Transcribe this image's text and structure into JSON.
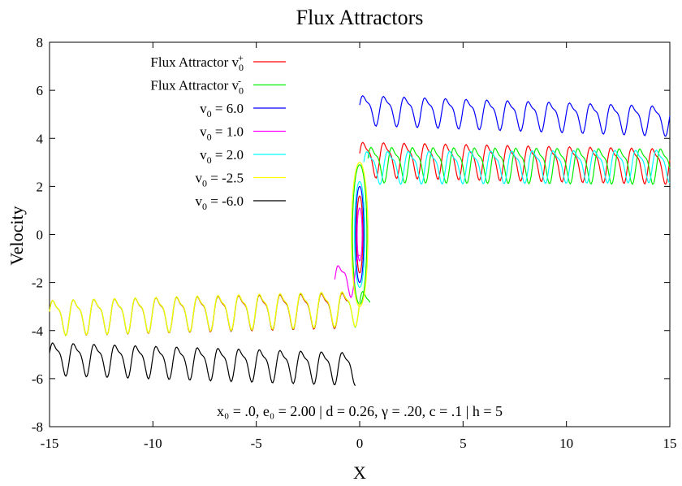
{
  "chart_data": {
    "type": "line",
    "title": "Flux Attractors",
    "xlabel": "X",
    "ylabel": "Velocity",
    "xlim": [
      -15,
      15
    ],
    "ylim": [
      -8,
      8
    ],
    "xticks": [
      -15,
      -10,
      -5,
      0,
      5,
      10,
      15
    ],
    "yticks": [
      -8,
      -6,
      -4,
      -2,
      0,
      2,
      4,
      6,
      8
    ],
    "grid": false,
    "legend_position": "top-left",
    "annotation": "x₀ = .0, e₀ = 2.00 | d = 0.26, γ = .20, c = .1 | h = 5",
    "series": [
      {
        "name": "Flux Attractor v0+",
        "label_main": "Flux Attractor v",
        "label_sub": "0",
        "label_sup": "+",
        "label_rest": "",
        "color": "#ff0000",
        "region": "both",
        "positive": {
          "start": [
            0.0,
            3.6
          ],
          "end": [
            15.0,
            2.8
          ],
          "baseline": 3.0,
          "amp": 0.65,
          "period": 1.0
        },
        "negative": {
          "start": [
            -15.0,
            -3.7
          ],
          "end": [
            -0.6,
            -2.8
          ],
          "baseline": -3.2,
          "amp": 0.65,
          "period": 1.0
        },
        "central_loop_ry": 1.6,
        "central_loop_rx": 0.15
      },
      {
        "name": "Flux Attractor v0-",
        "label_main": "Flux Attractor v",
        "label_sub": "0",
        "label_sup": "-",
        "label_rest": "",
        "color": "#00ee00",
        "region": "both",
        "positive": {
          "start": [
            0.4,
            3.0
          ],
          "end": [
            15.0,
            2.8
          ],
          "baseline": 3.0,
          "amp": 0.65,
          "period": 1.0
        },
        "negative": {
          "start": [
            -15.0,
            -3.7
          ],
          "end": [
            0.5,
            -2.6
          ],
          "baseline": -3.2,
          "amp": 0.65,
          "period": 1.0
        },
        "central_loop_ry": 2.9,
        "central_loop_rx": 0.35
      },
      {
        "name": "v0 = 6.0",
        "label_main": "v",
        "label_sub": "0",
        "label_sup": "",
        "label_rest": " = 6.0",
        "color": "#0000ff",
        "region": "positive",
        "positive": {
          "start": [
            0.0,
            5.9
          ],
          "end": [
            15.0,
            4.6
          ],
          "baseline": 4.9,
          "amp": 0.55,
          "period": 1.0
        },
        "central_loop_ry": 2.0,
        "central_loop_rx": 0.2
      },
      {
        "name": "v0 = 1.0",
        "label_main": "v",
        "label_sub": "0",
        "label_sup": "",
        "label_rest": " = 1.0",
        "color": "#ff00ff",
        "region": "negative",
        "negative": {
          "start": [
            -1.2,
            -2.5
          ],
          "end": [
            0.0,
            -1.0
          ],
          "baseline": -1.8,
          "amp": 0.7,
          "period": 1.0
        },
        "central_loop_ry": 1.1,
        "central_loop_rx": 0.12
      },
      {
        "name": "v0 = 2.0",
        "label_main": "v",
        "label_sub": "0",
        "label_sup": "",
        "label_rest": " = 2.0",
        "color": "#00ffff",
        "region": "positive",
        "positive": {
          "start": [
            0.2,
            2.8
          ],
          "end": [
            15.0,
            3.0
          ],
          "baseline": 2.9,
          "amp": 0.6,
          "period": 1.0
        },
        "central_loop_ry": 2.2,
        "central_loop_rx": 0.25
      },
      {
        "name": "v0 = -2.5",
        "label_main": "v",
        "label_sub": "0",
        "label_sup": "",
        "label_rest": " = -2.5",
        "color": "#ffff00",
        "region": "negative",
        "negative": {
          "start": [
            -15.0,
            -3.7
          ],
          "end": [
            0.0,
            -2.6
          ],
          "baseline": -3.2,
          "amp": 0.65,
          "period": 1.0
        },
        "central_loop_ry": 3.0,
        "central_loop_rx": 0.4
      },
      {
        "name": "v0 = -6.0",
        "label_main": "v",
        "label_sub": "0",
        "label_sup": "",
        "label_rest": " = -6.0",
        "color": "#000000",
        "region": "negative",
        "negative": {
          "start": [
            -15.0,
            -4.7
          ],
          "end": [
            -0.2,
            -5.9
          ],
          "baseline": -5.3,
          "amp": 0.6,
          "period": 1.0
        },
        "central_loop_ry": 0,
        "central_loop_rx": 0
      }
    ]
  }
}
